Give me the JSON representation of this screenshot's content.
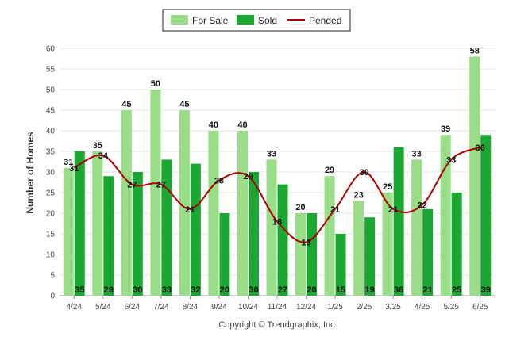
{
  "chart_data": {
    "type": "bar",
    "categories": [
      "4/24",
      "5/24",
      "6/24",
      "7/24",
      "8/24",
      "9/24",
      "10/24",
      "11/24",
      "12/24",
      "1/25",
      "2/25",
      "3/25",
      "4/25",
      "5/25",
      "6/25"
    ],
    "series": [
      {
        "name": "For Sale",
        "type": "bar",
        "color": "#99dd88",
        "values": [
          31,
          35,
          45,
          50,
          45,
          40,
          40,
          33,
          20,
          29,
          23,
          25,
          33,
          39,
          58
        ]
      },
      {
        "name": "Sold",
        "type": "bar",
        "color": "#1aa832",
        "values": [
          35,
          29,
          30,
          33,
          32,
          20,
          30,
          27,
          20,
          15,
          19,
          36,
          21,
          25,
          39
        ]
      },
      {
        "name": "Pended",
        "type": "line",
        "color": "#b00000",
        "values": [
          31,
          34,
          27,
          27,
          21,
          28,
          29,
          18,
          13,
          21,
          30,
          21,
          22,
          33,
          36
        ]
      }
    ],
    "ylabel": "Number of Homes",
    "xlabel": "",
    "ylim": [
      0,
      60
    ],
    "yticks": [
      0,
      5,
      10,
      15,
      20,
      25,
      30,
      35,
      40,
      45,
      50,
      55,
      60
    ],
    "grid": true,
    "legend_position": "top-center",
    "credit": "Copyright © Trendgraphix, Inc."
  }
}
